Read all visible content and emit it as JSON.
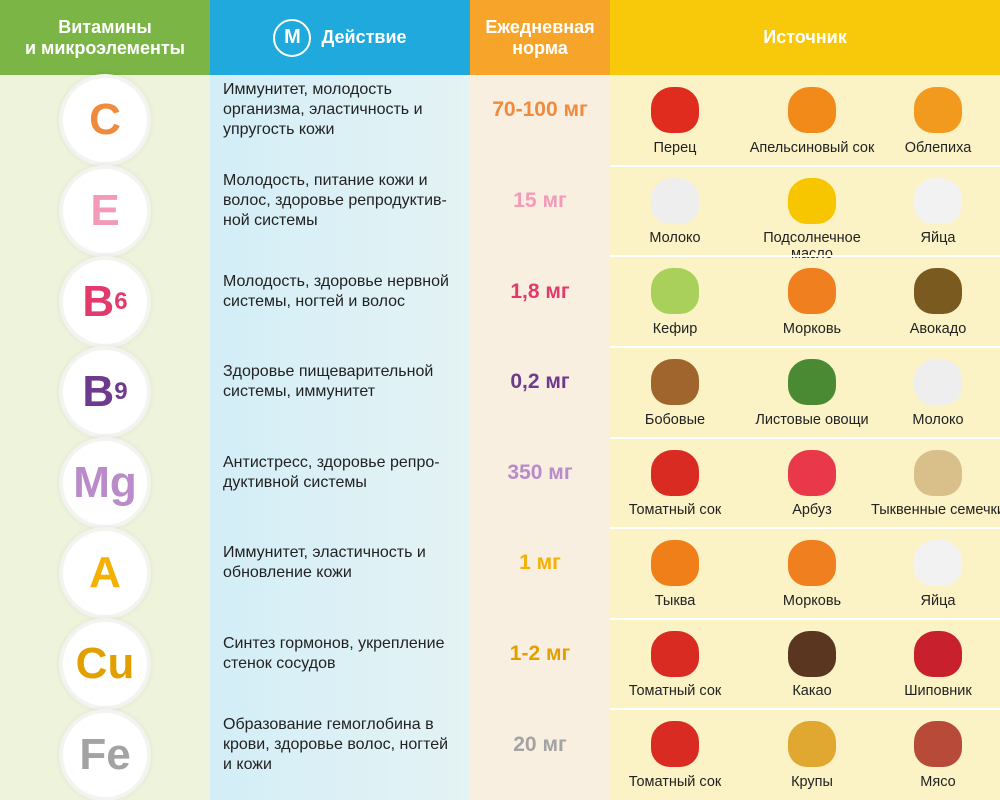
{
  "header": {
    "col1": "Витамины\nи микроэлементы",
    "logo": "M",
    "col2": "Действие",
    "col3": "Ежедневная\nнорма",
    "col4": "Источник"
  },
  "rows": [
    {
      "symbol": "C",
      "sub": "",
      "color": "#f08a3c",
      "action": "Иммунитет, молодость\nорганизма, эластичность и\nупругость кожи",
      "norm": "70-100 мг",
      "sources": [
        "Перец",
        "Апельсиновый сок",
        "Облепиха"
      ]
    },
    {
      "symbol": "E",
      "sub": "",
      "color": "#f49ab9",
      "action": "Молодость, питание кожи и\nволос, здоровье репродуктив-\nной системы",
      "norm": "15 мг",
      "sources": [
        "Молоко",
        "Подсолнечное масло",
        "Яйца"
      ]
    },
    {
      "symbol": "B",
      "sub": "6",
      "color": "#e23a6c",
      "action": "Молодость, здоровье нервной\nсистемы, ногтей и волос",
      "norm": "1,8 мг",
      "sources": [
        "Кефир",
        "Морковь",
        "Авокадо"
      ]
    },
    {
      "symbol": "B",
      "sub": "9",
      "color": "#6e3a8e",
      "action": "Здоровье пищеварительной\nсистемы, иммунитет",
      "norm": "0,2 мг",
      "sources": [
        "Бобовые",
        "Листовые овощи",
        "Молоко"
      ]
    },
    {
      "symbol": "Mg",
      "sub": "",
      "color": "#b98bc8",
      "action": "Антистресс, здоровье репро-\nдуктивной системы",
      "norm": "350 мг",
      "sources": [
        "Томатный сок",
        "Арбуз",
        "Тыквенные семечки"
      ]
    },
    {
      "symbol": "A",
      "sub": "",
      "color": "#f5b000",
      "action": "Иммунитет, эластичность и\nобновление кожи",
      "norm": "1 мг",
      "sources": [
        "Тыква",
        "Морковь",
        "Яйца"
      ]
    },
    {
      "symbol": "Cu",
      "sub": "",
      "color": "#e2a000",
      "action": "Синтез гормонов, укрепление\nстенок сосудов",
      "norm": "1-2 мг",
      "sources": [
        "Томатный сок",
        "Какао",
        "Шиповник"
      ]
    },
    {
      "symbol": "Fe",
      "sub": "",
      "color": "#a3a3a3",
      "action": "Образование гемоглобина в\nкрови, здоровье волос, ногтей\nи кожи",
      "norm": "20 мг",
      "sources": [
        "Томатный сок",
        "Крупы",
        "Мясо"
      ]
    }
  ]
}
